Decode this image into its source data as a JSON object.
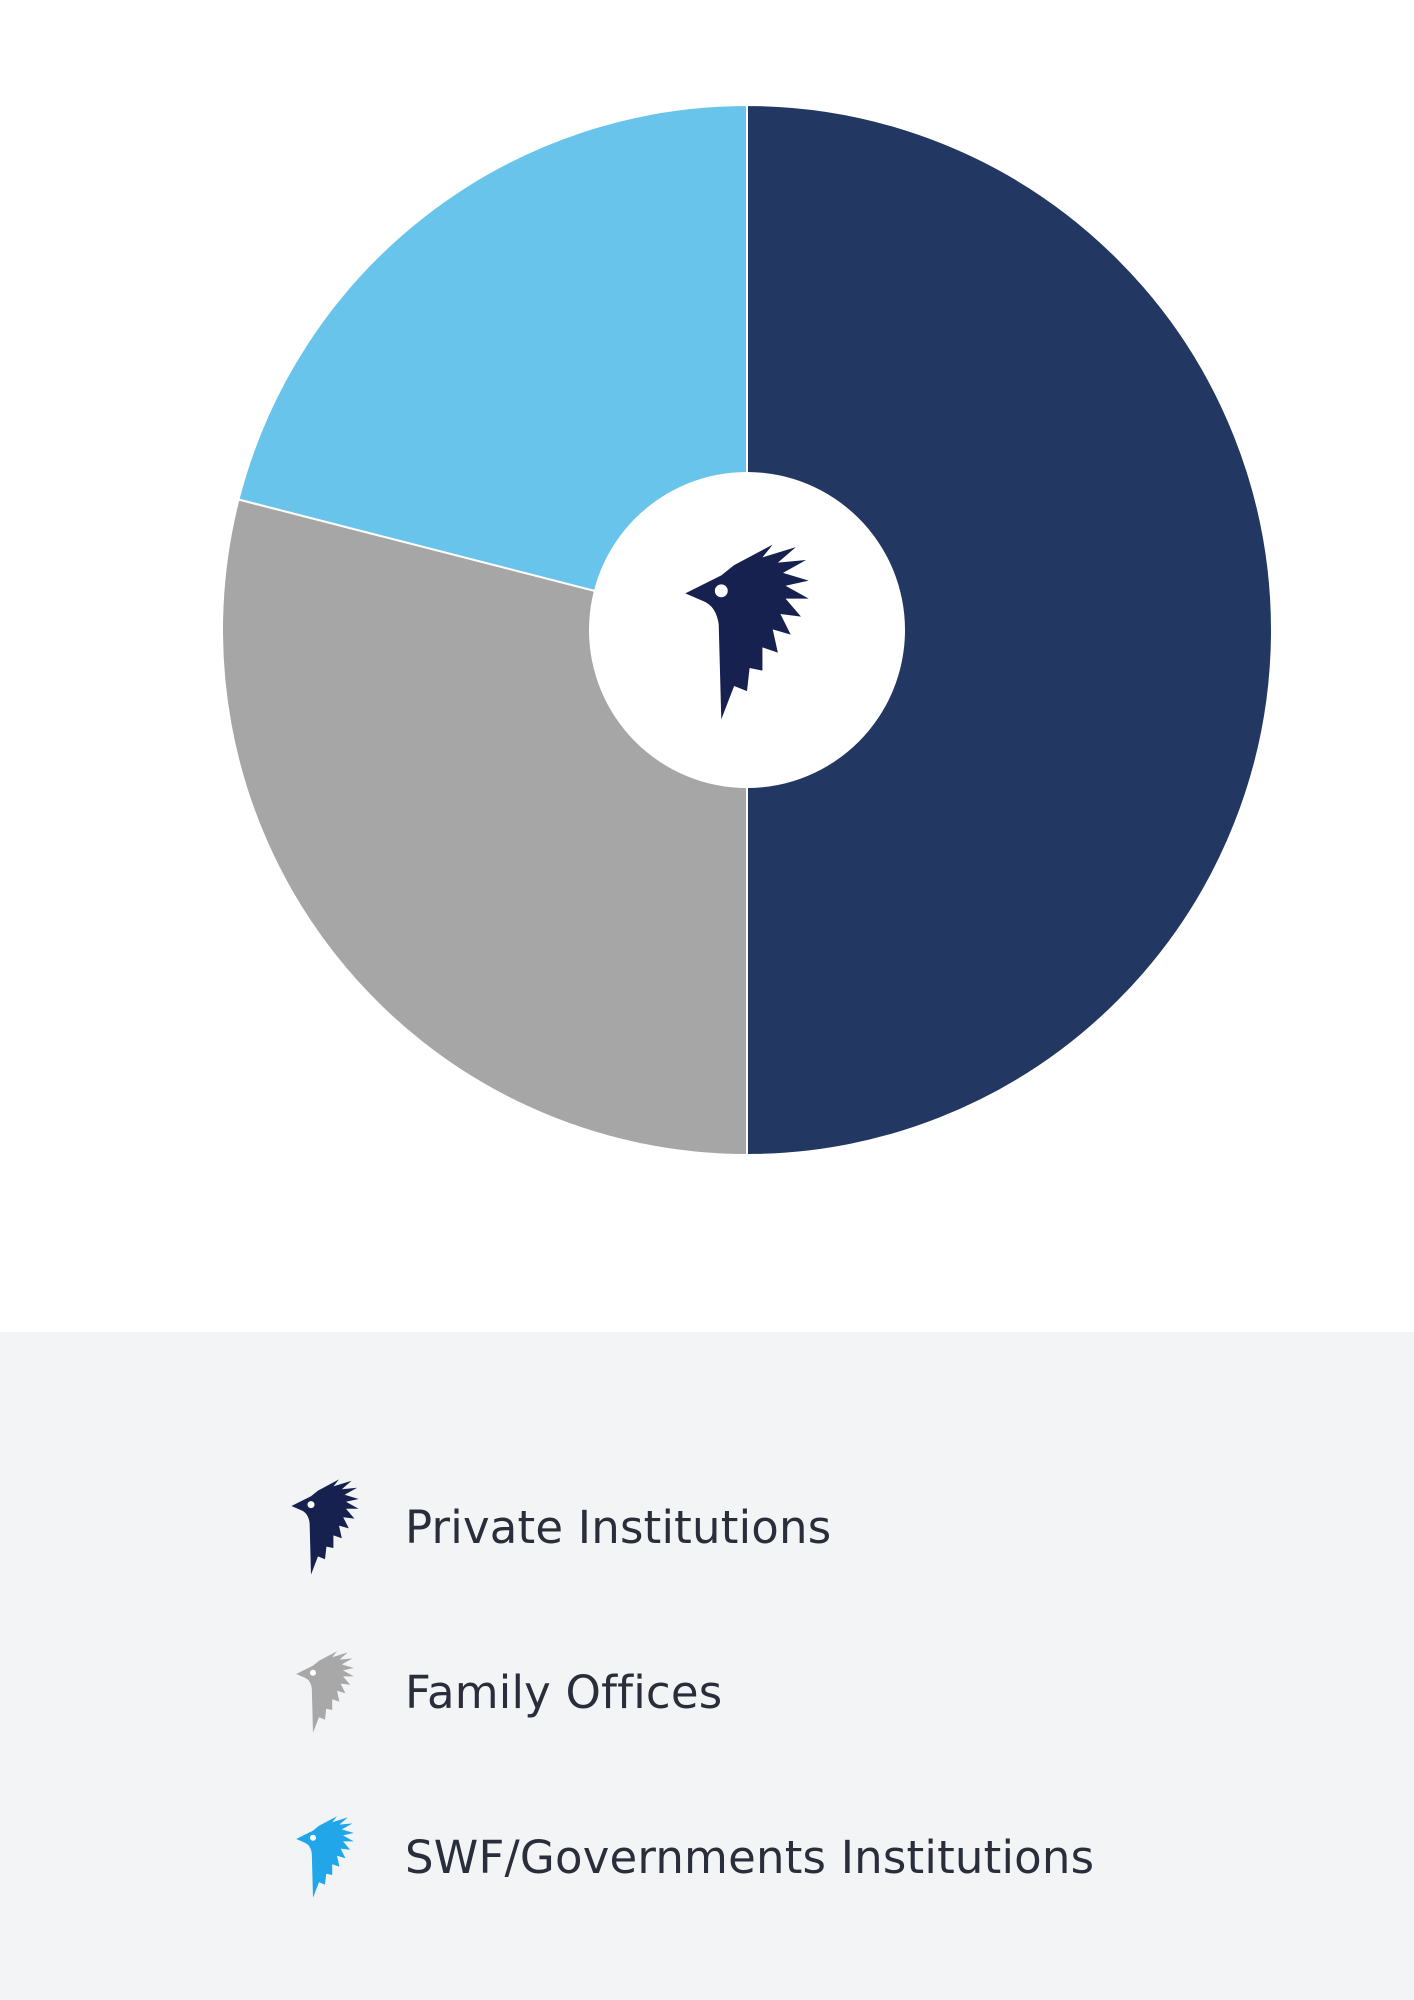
{
  "chart_data": {
    "type": "pie",
    "title": "",
    "categories": [
      "Private Institutions",
      "Family Offices",
      "SWF/Governments Institutions"
    ],
    "values": [
      50,
      29,
      21
    ],
    "colors": [
      "#223761",
      "#a6a6a6",
      "#69c4ec"
    ],
    "donut": true,
    "start_angle_deg": 0,
    "legend_position": "bottom"
  },
  "center_logo": {
    "icon": "bird-wing-logo-icon",
    "color": "#172150"
  },
  "legend": {
    "items": [
      {
        "label": "Private Institutions",
        "icon": "bird-wing-logo-icon",
        "color": "#172150"
      },
      {
        "label": "Family Offices",
        "icon": "bird-wing-logo-icon",
        "color": "#a8a8a8"
      },
      {
        "label": "SWF/Governments Institutions",
        "icon": "bird-wing-logo-icon",
        "color": "#21a6ea"
      }
    ]
  }
}
